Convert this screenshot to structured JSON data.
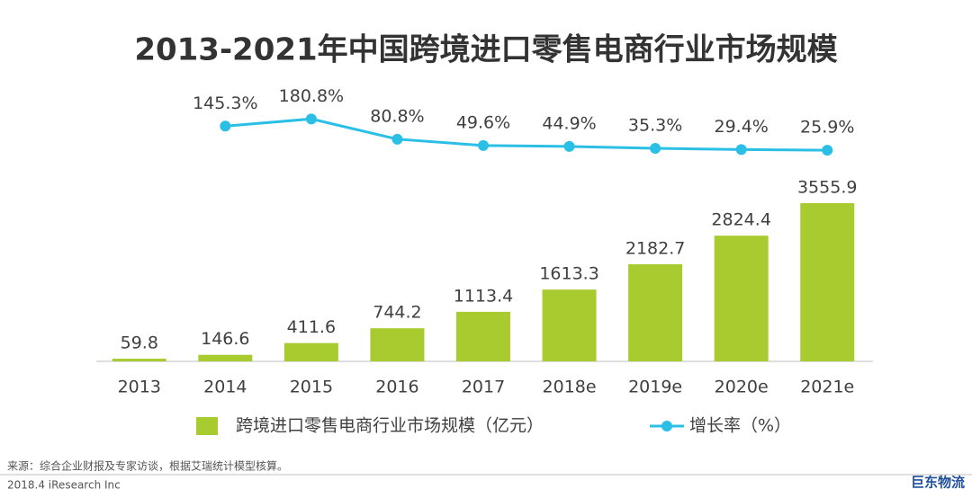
{
  "chart_data": {
    "type": "bar",
    "title": "2013-2021年中国跨境进口零售电商行业市场规模",
    "categories": [
      "2013",
      "2014",
      "2015",
      "2016",
      "2017",
      "2018e",
      "2019e",
      "2020e",
      "2021e"
    ],
    "series": [
      {
        "name": "跨境进口零售电商行业市场规模（亿元）",
        "type": "bar",
        "color": "#a8cc2f",
        "values": [
          59.8,
          146.6,
          411.6,
          744.2,
          1113.4,
          1613.3,
          2182.7,
          2824.4,
          3555.9
        ]
      },
      {
        "name": "增长率（%）",
        "type": "line",
        "axis": "y2",
        "color": "#2bbfe6",
        "values": [
          null,
          145.3,
          180.8,
          80.8,
          49.6,
          44.9,
          35.3,
          29.4,
          25.9
        ],
        "value_labels": [
          null,
          "145.3%",
          "180.8%",
          "80.8%",
          "49.6%",
          "44.9%",
          "35.3%",
          "29.4%",
          "25.9%"
        ]
      }
    ],
    "ylim": [
      0,
      4000
    ],
    "y2lim": [
      0,
      200
    ],
    "legend": "bottom",
    "source": "来源：综合企业财报及专家访谈，根据艾瑞统计模型核算。",
    "credit": "2018.4 iResearch Inc",
    "logo": "巨东物流"
  }
}
